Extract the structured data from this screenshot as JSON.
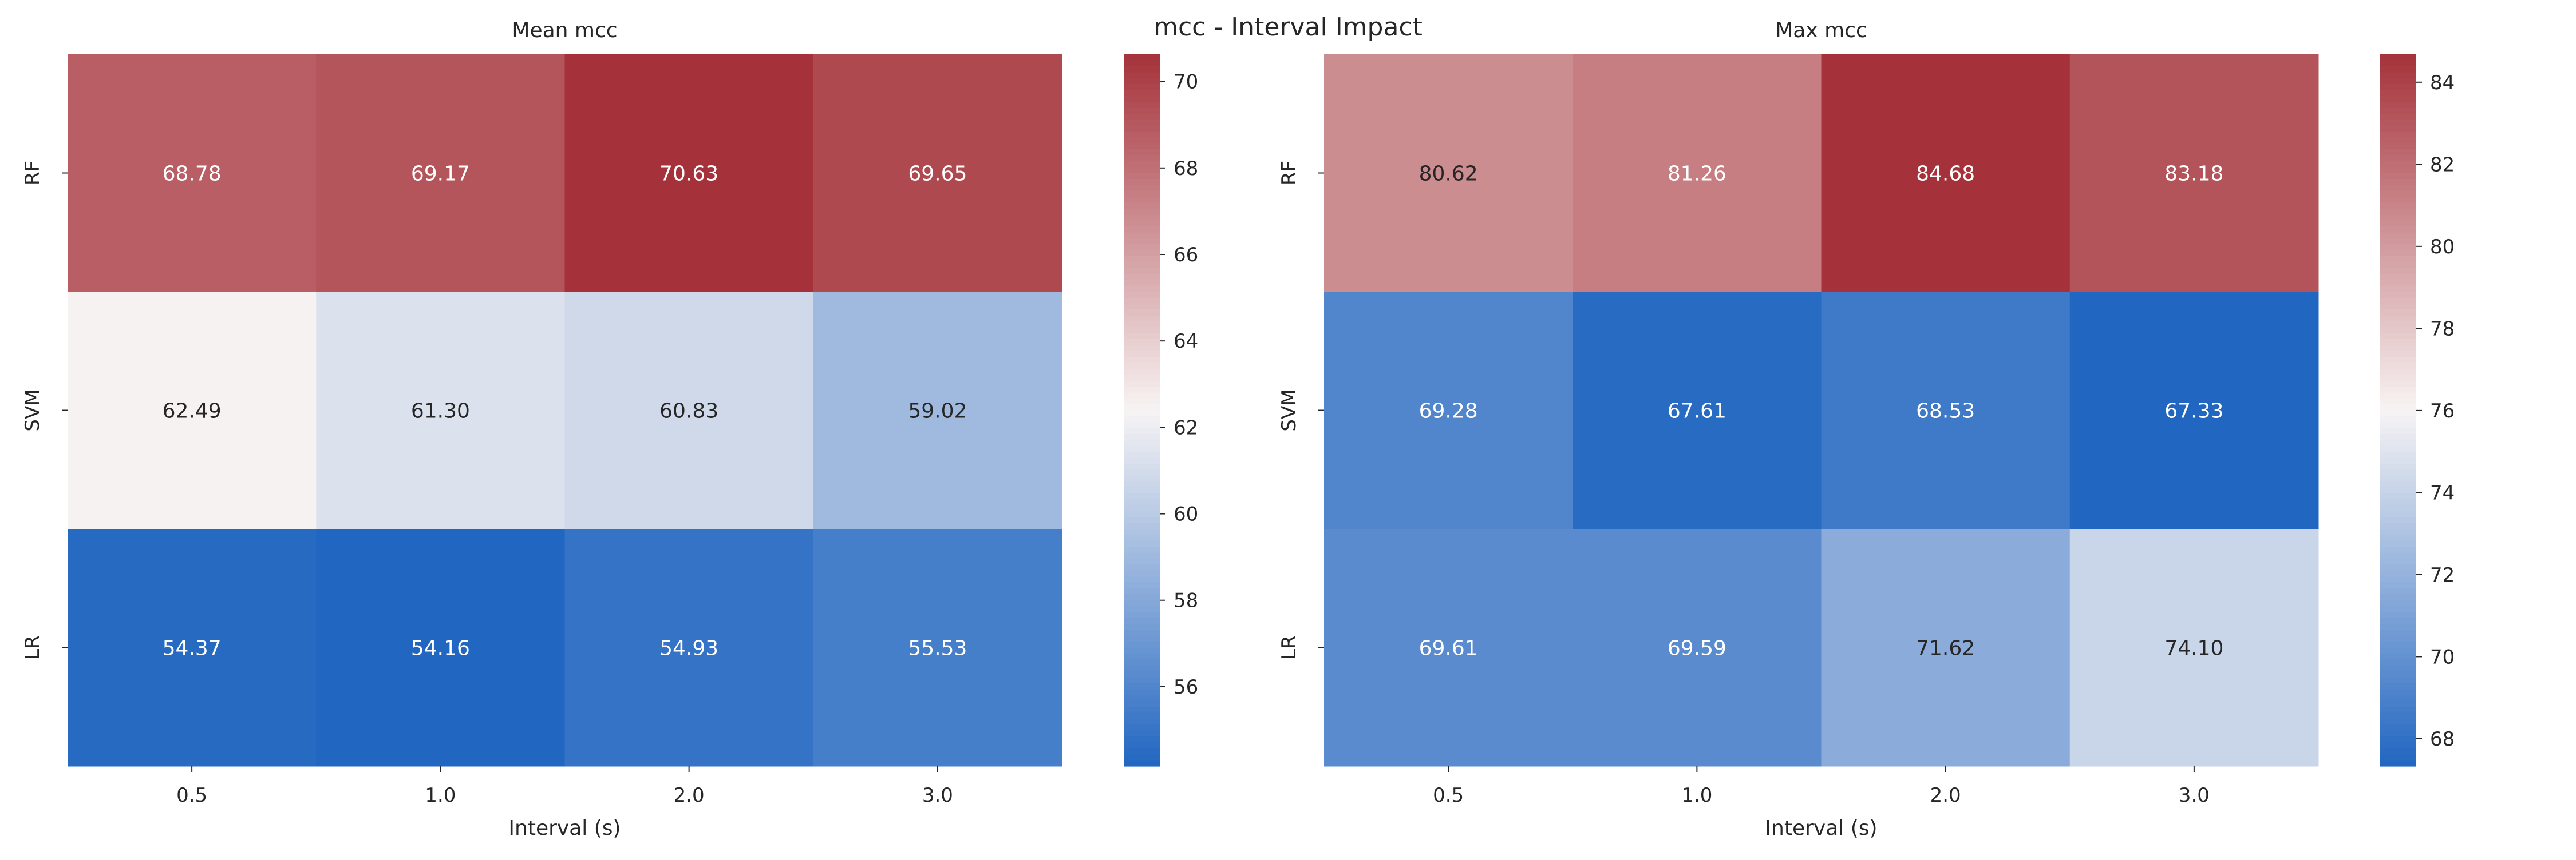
{
  "suptitle": "mcc - Interval Impact",
  "chart_data": [
    {
      "type": "heatmap",
      "title": "Mean mcc",
      "xlabel": "Interval (s)",
      "ylabel": "",
      "x_categories": [
        "0.5",
        "1.0",
        "2.0",
        "3.0"
      ],
      "y_categories": [
        "RF",
        "SVM",
        "LR"
      ],
      "values": [
        [
          68.78,
          69.17,
          70.63,
          69.65
        ],
        [
          62.49,
          61.3,
          60.83,
          59.02
        ],
        [
          54.37,
          54.16,
          54.93,
          55.53
        ]
      ],
      "cell_labels": [
        [
          "68.78",
          "69.17",
          "70.63",
          "69.65"
        ],
        [
          "62.49",
          "61.30",
          "60.83",
          "59.02"
        ],
        [
          "54.37",
          "54.16",
          "54.93",
          "55.53"
        ]
      ],
      "colormap": "vlag",
      "vmin": 54.16,
      "vmax": 70.63,
      "colorbar_ticks": [
        "56",
        "58",
        "60",
        "62",
        "64",
        "66",
        "68",
        "70"
      ]
    },
    {
      "type": "heatmap",
      "title": "Max mcc",
      "xlabel": "Interval (s)",
      "ylabel": "",
      "x_categories": [
        "0.5",
        "1.0",
        "2.0",
        "3.0"
      ],
      "y_categories": [
        "RF",
        "SVM",
        "LR"
      ],
      "values": [
        [
          80.62,
          81.26,
          84.68,
          83.18
        ],
        [
          69.28,
          67.61,
          68.53,
          67.33
        ],
        [
          69.61,
          69.59,
          71.62,
          74.1
        ]
      ],
      "cell_labels": [
        [
          "80.62",
          "81.26",
          "84.68",
          "83.18"
        ],
        [
          "69.28",
          "67.61",
          "68.53",
          "67.33"
        ],
        [
          "69.61",
          "69.59",
          "71.62",
          "74.10"
        ]
      ],
      "colormap": "vlag",
      "vmin": 67.33,
      "vmax": 84.68,
      "colorbar_ticks": [
        "68",
        "70",
        "72",
        "74",
        "76",
        "78",
        "80",
        "82",
        "84"
      ]
    }
  ],
  "colors": {
    "cmap_low": "#2166c1",
    "cmap_mid": "#f8f4f4",
    "cmap_high": "#a5323a",
    "text_dark": "#262626",
    "text_light": "#ffffff"
  }
}
